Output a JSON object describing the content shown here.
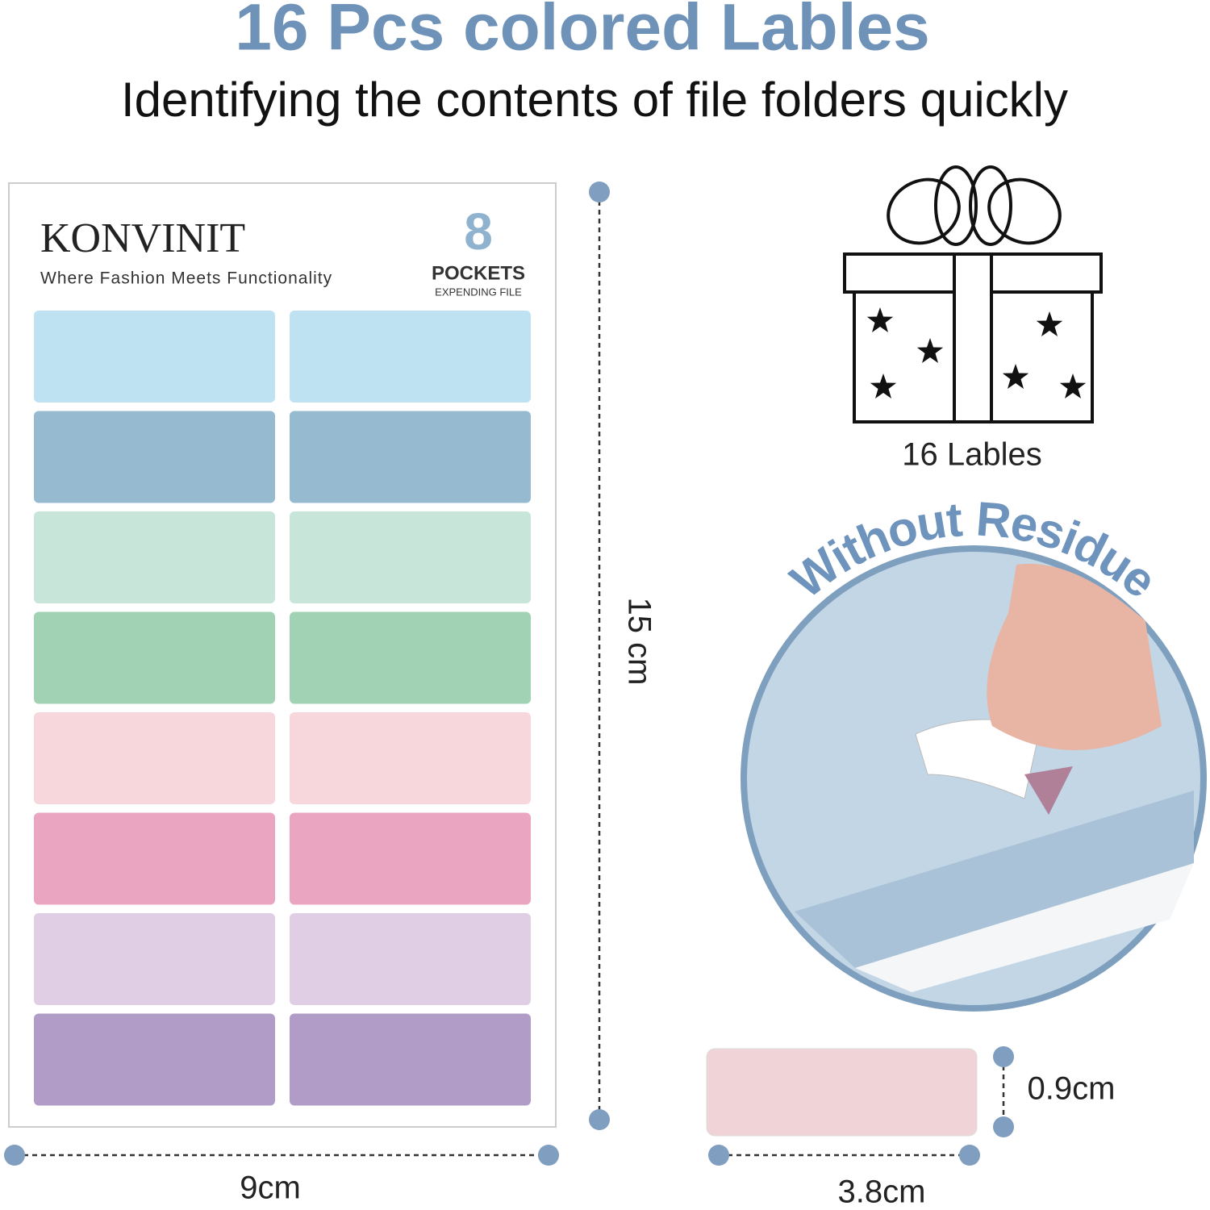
{
  "header": {
    "title": "16 Pcs colored Lables",
    "subtitle": "Identifying the contents of file folders quickly"
  },
  "sheet": {
    "brand": "KONVINIT",
    "tagline": "Where Fashion Meets Functionality",
    "badge_number": "8",
    "badge_title": "POCKETS",
    "badge_subtitle": "EXPENDING FILE",
    "height_label": "15 cm",
    "width_label": "9cm"
  },
  "gift": {
    "caption": "16 Lables"
  },
  "feature": {
    "label": "Without Residue"
  },
  "single_label": {
    "height_label": "0.9cm",
    "width_label": "3.8cm"
  }
}
